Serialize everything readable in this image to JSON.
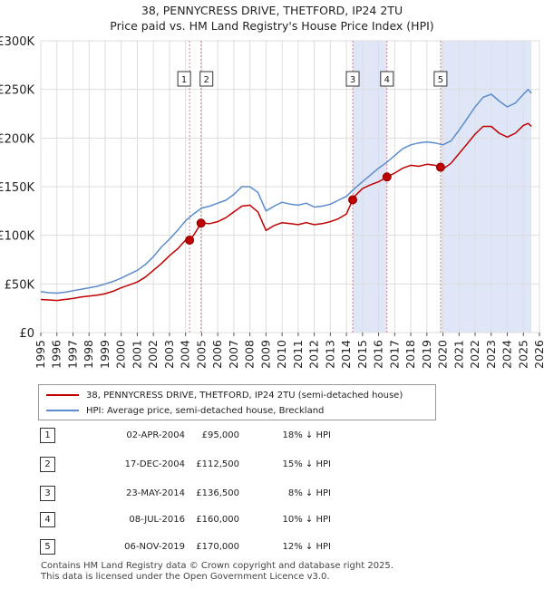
{
  "title_line1": "38, PENNYCRESS DRIVE, THETFORD, IP24 2TU",
  "title_line2": "Price paid vs. HM Land Registry's House Price Index (HPI)",
  "legend": {
    "property_label": "38, PENNYCRESS DRIVE, THETFORD, IP24 2TU (semi-detached house)",
    "hpi_label": "HPI: Average price, semi-detached house, Breckland"
  },
  "colors": {
    "property": "#c00000",
    "hpi": "#5b8ccc",
    "shade": "#dfe6f7",
    "grid": "#dddddd"
  },
  "sales": [
    {
      "num": "1",
      "date": "02-APR-2004",
      "price": "£95,000",
      "hpi_diff": "18% ↓ HPI"
    },
    {
      "num": "2",
      "date": "17-DEC-2004",
      "price": "£112,500",
      "hpi_diff": "15% ↓ HPI"
    },
    {
      "num": "3",
      "date": "23-MAY-2014",
      "price": "£136,500",
      "hpi_diff": "8% ↓ HPI"
    },
    {
      "num": "4",
      "date": "08-JUL-2016",
      "price": "£160,000",
      "hpi_diff": "10% ↓ HPI"
    },
    {
      "num": "5",
      "date": "06-NOV-2019",
      "price": "£170,000",
      "hpi_diff": "12% ↓ HPI"
    }
  ],
  "footer_line1": "Contains HM Land Registry data © Crown copyright and database right 2025.",
  "footer_line2": "This data is licensed under the Open Government Licence v3.0.",
  "chart_data": {
    "type": "line",
    "title": "38, PENNYCRESS DRIVE, THETFORD, IP24 2TU",
    "subtitle": "Price paid vs. HM Land Registry's House Price Index (HPI)",
    "xlabel": "",
    "ylabel": "",
    "xlim": [
      1995,
      2026
    ],
    "ylim": [
      0,
      300000
    ],
    "y_ticks": [
      {
        "value": 0,
        "label": "£0"
      },
      {
        "value": 50000,
        "label": "£50K"
      },
      {
        "value": 100000,
        "label": "£100K"
      },
      {
        "value": 150000,
        "label": "£150K"
      },
      {
        "value": 200000,
        "label": "£200K"
      },
      {
        "value": 250000,
        "label": "£250K"
      },
      {
        "value": 300000,
        "label": "£300K"
      }
    ],
    "x_ticks": [
      "1995",
      "1996",
      "1997",
      "1998",
      "1999",
      "2000",
      "2001",
      "2002",
      "2003",
      "2004",
      "2005",
      "2006",
      "2007",
      "2008",
      "2009",
      "2010",
      "2011",
      "2012",
      "2013",
      "2014",
      "2015",
      "2016",
      "2017",
      "2018",
      "2019",
      "2020",
      "2021",
      "2022",
      "2023",
      "2024",
      "2025",
      "2026"
    ],
    "grid": true,
    "legend_position": "below",
    "shaded_ranges": [
      [
        2014.39,
        2016.52
      ],
      [
        2019.85,
        2025.5
      ]
    ],
    "series": [
      {
        "name": "HPI: Average price, semi-detached house, Breckland",
        "x": [
          1995.0,
          1995.5,
          1996.0,
          1996.5,
          1997.0,
          1997.5,
          1998.0,
          1998.5,
          1999.0,
          1999.5,
          2000.0,
          2000.5,
          2001.0,
          2001.5,
          2002.0,
          2002.5,
          2003.0,
          2003.5,
          2004.0,
          2004.5,
          2005.0,
          2005.5,
          2006.0,
          2006.5,
          2007.0,
          2007.5,
          2008.0,
          2008.5,
          2009.0,
          2009.5,
          2010.0,
          2010.5,
          2011.0,
          2011.5,
          2012.0,
          2012.5,
          2013.0,
          2013.5,
          2014.0,
          2014.5,
          2015.0,
          2015.5,
          2016.0,
          2016.5,
          2017.0,
          2017.5,
          2018.0,
          2018.5,
          2019.0,
          2019.5,
          2020.0,
          2020.5,
          2021.0,
          2021.5,
          2022.0,
          2022.5,
          2023.0,
          2023.5,
          2024.0,
          2024.5,
          2025.0,
          2025.3,
          2025.5
        ],
        "values": [
          42000,
          41000,
          40500,
          41500,
          43000,
          44500,
          46000,
          47500,
          50000,
          52500,
          56000,
          60000,
          64000,
          70000,
          78000,
          88000,
          96000,
          105000,
          115000,
          122000,
          128000,
          130000,
          133000,
          136000,
          142000,
          150000,
          150000,
          144000,
          125000,
          130000,
          134000,
          132000,
          131000,
          133000,
          129000,
          130000,
          132000,
          136000,
          140000,
          148000,
          155000,
          162000,
          169000,
          175000,
          182000,
          189000,
          193000,
          195000,
          196000,
          195000,
          193000,
          197000,
          208000,
          220000,
          232000,
          242000,
          245000,
          238000,
          232000,
          236000,
          245000,
          250000,
          246000
        ]
      },
      {
        "name": "38, PENNYCRESS DRIVE, THETFORD, IP24 2TU (semi-detached house)",
        "x": [
          1995.0,
          1995.5,
          1996.0,
          1996.5,
          1997.0,
          1997.5,
          1998.0,
          1998.5,
          1999.0,
          1999.5,
          2000.0,
          2000.5,
          2001.0,
          2001.5,
          2002.0,
          2002.5,
          2003.0,
          2003.5,
          2004.0,
          2004.25,
          2004.5,
          2004.96,
          2005.0,
          2005.5,
          2006.0,
          2006.5,
          2007.0,
          2007.5,
          2008.0,
          2008.5,
          2009.0,
          2009.5,
          2010.0,
          2010.5,
          2011.0,
          2011.5,
          2012.0,
          2012.5,
          2013.0,
          2013.5,
          2014.0,
          2014.39,
          2014.5,
          2015.0,
          2015.5,
          2016.0,
          2016.52,
          2017.0,
          2017.5,
          2018.0,
          2018.5,
          2019.0,
          2019.5,
          2019.85,
          2020.0,
          2020.5,
          2021.0,
          2021.5,
          2022.0,
          2022.5,
          2023.0,
          2023.5,
          2024.0,
          2024.5,
          2025.0,
          2025.3,
          2025.5
        ],
        "values": [
          34000,
          33500,
          33000,
          34000,
          35000,
          36500,
          37500,
          38500,
          40000,
          42500,
          46000,
          49000,
          52000,
          57000,
          64000,
          71000,
          79000,
          86000,
          95000,
          95000,
          100000,
          112500,
          112500,
          112000,
          114000,
          118000,
          124000,
          130000,
          131000,
          124000,
          105000,
          110000,
          113000,
          112000,
          111000,
          113000,
          111000,
          112000,
          114000,
          117000,
          122000,
          136500,
          140000,
          148000,
          152000,
          155000,
          160000,
          164000,
          169000,
          172000,
          171000,
          173000,
          172000,
          170000,
          168000,
          174000,
          184000,
          194000,
          204000,
          212000,
          212000,
          205000,
          201000,
          205000,
          213000,
          215000,
          212000
        ]
      }
    ],
    "sale_points": [
      {
        "num": "1",
        "x": 2004.25,
        "value": 95000
      },
      {
        "num": "2",
        "x": 2004.96,
        "value": 112500
      },
      {
        "num": "3",
        "x": 2014.39,
        "value": 136500
      },
      {
        "num": "4",
        "x": 2016.52,
        "value": 160000
      },
      {
        "num": "5",
        "x": 2019.85,
        "value": 170000
      }
    ]
  }
}
